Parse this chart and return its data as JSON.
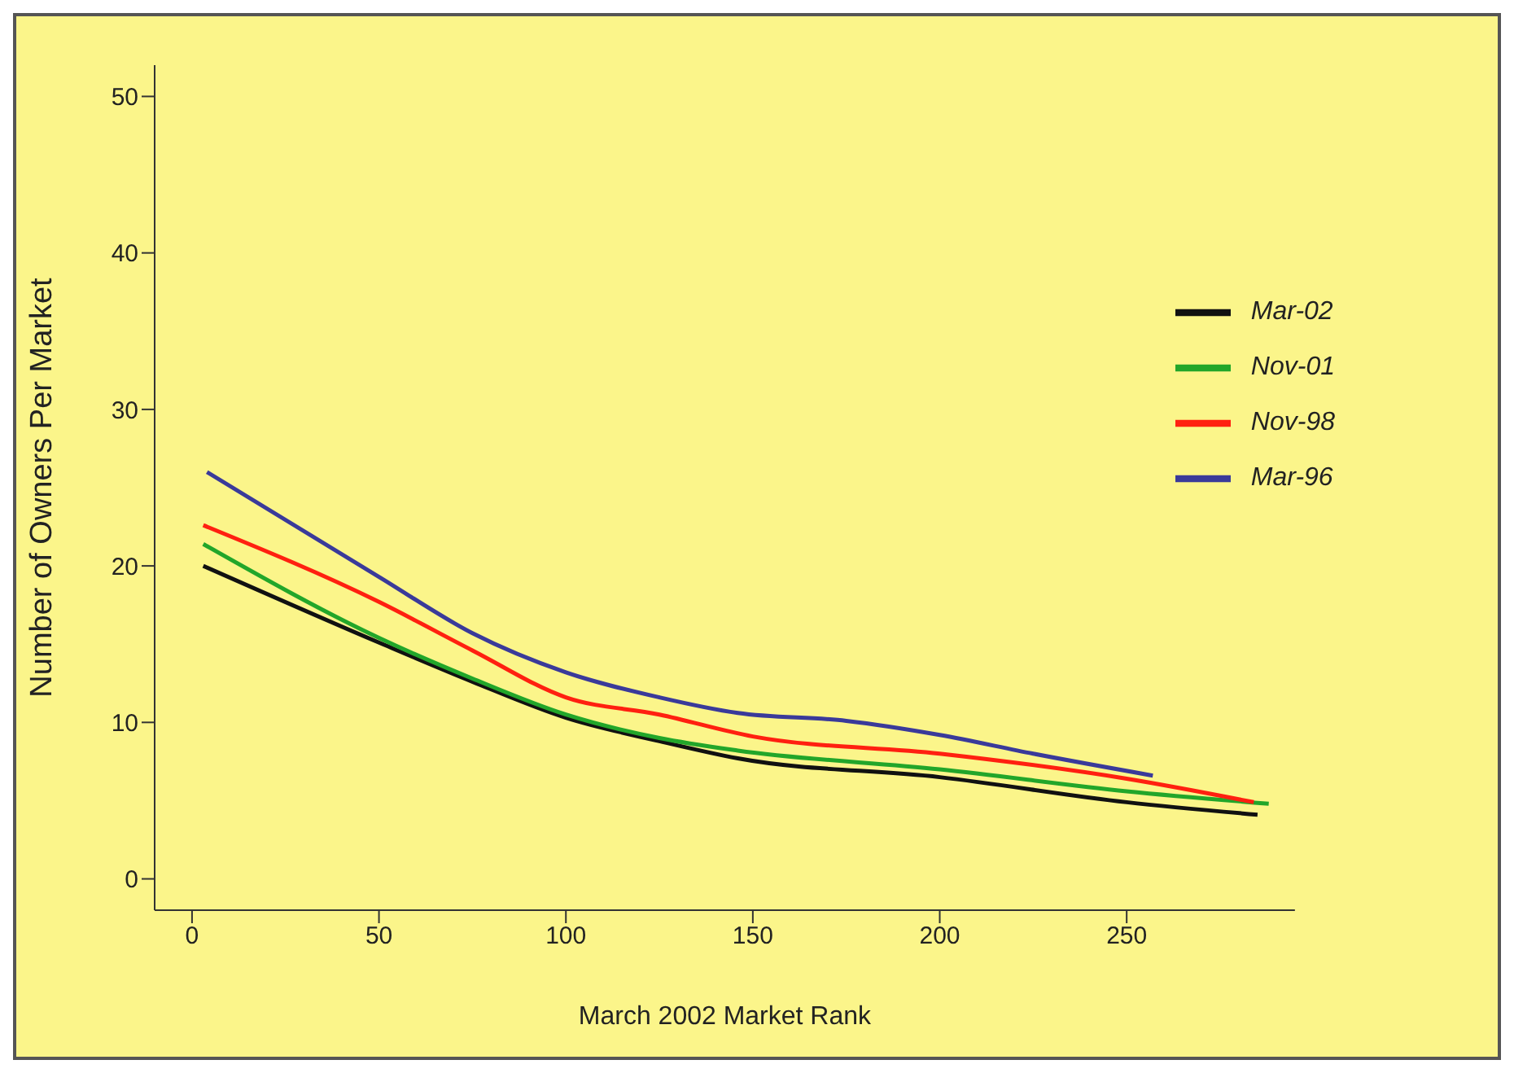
{
  "chart_data": {
    "type": "line",
    "xlabel": "March 2002 Market Rank",
    "ylabel": "Number of Owners Per Market",
    "xlim": [
      -10,
      295
    ],
    "ylim": [
      -2,
      52
    ],
    "xticks": [
      0,
      50,
      100,
      150,
      200,
      250
    ],
    "yticks": [
      0,
      10,
      20,
      30,
      40,
      50
    ],
    "grid": false,
    "legend": "top right",
    "marker": "none",
    "line_style": "solid",
    "series": [
      {
        "name": "Mar-02",
        "color": "#111111",
        "x": [
          3,
          50,
          75,
          100,
          125,
          146,
          200,
          250,
          285
        ],
        "values": [
          20.0,
          15.1,
          12.6,
          10.3,
          8.8,
          7.7,
          6.5,
          4.9,
          4.1
        ]
      },
      {
        "name": "Nov-01",
        "color": "#22a62a",
        "x": [
          3,
          50,
          75,
          100,
          125,
          146,
          200,
          250,
          288
        ],
        "values": [
          21.4,
          15.4,
          12.8,
          10.5,
          9.0,
          8.2,
          7.0,
          5.6,
          4.8
        ]
      },
      {
        "name": "Nov-98",
        "color": "#ff2010",
        "x": [
          3,
          50,
          75,
          100,
          125,
          150,
          200,
          250,
          284
        ],
        "values": [
          22.6,
          17.7,
          14.6,
          11.6,
          10.5,
          9.1,
          8.0,
          6.4,
          4.9
        ]
      },
      {
        "name": "Mar-96",
        "color": "#3a3a9a",
        "x": [
          4,
          50,
          75,
          100,
          125,
          146,
          175,
          200,
          225,
          257
        ],
        "values": [
          26,
          19.3,
          15.7,
          13.2,
          11.6,
          10.6,
          10.1,
          9.2,
          8.0,
          6.6
        ]
      }
    ]
  }
}
